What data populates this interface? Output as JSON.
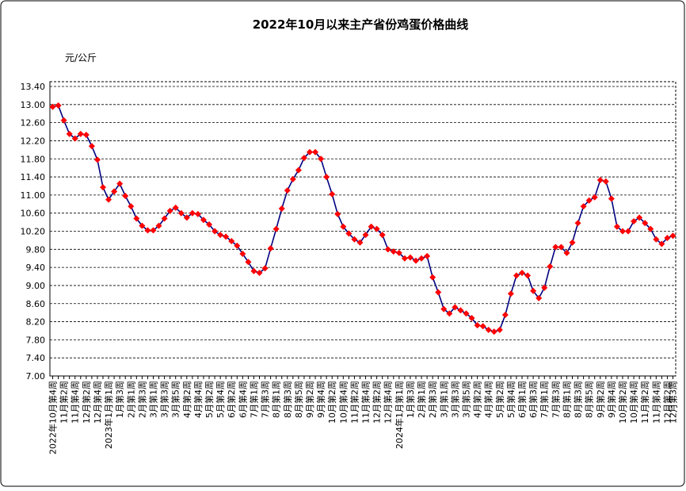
{
  "chart_data": {
    "type": "line",
    "title": "2022年10月以来主产省份鸡蛋价格曲线",
    "y_axis_label": "元/公斤",
    "categories": [
      "2022年10月第4周",
      null,
      "11月第2周",
      null,
      "11月第4周",
      null,
      "12月第2周",
      null,
      "12月第4周",
      null,
      "2023年1月第1周",
      null,
      "1月第3周",
      null,
      "2月第1周",
      null,
      "2月第3周",
      null,
      "3月第1周",
      null,
      "3月第3周",
      null,
      "3月第5周",
      null,
      "4月第2周",
      null,
      "4月第4周",
      null,
      "5月第2周",
      null,
      "5月第4周",
      null,
      "6月第2周",
      null,
      "6月第4周",
      null,
      "7月第1周",
      null,
      "7月第3周",
      null,
      "8月第1周",
      null,
      "8月第3周",
      null,
      "8月第5周",
      null,
      "9月第2周",
      null,
      "9月第4周",
      null,
      "10月第2周",
      null,
      "10月第4周",
      null,
      "11月第2周",
      null,
      "11月第4周",
      null,
      "12月第2周",
      null,
      "12月第4周",
      null,
      "2024年1月第1周",
      null,
      "1月第3周",
      null,
      "2月第1周",
      null,
      "2月第3周",
      null,
      "3月第1周",
      null,
      "3月第3周",
      null,
      "3月第5周",
      null,
      "4月第2周",
      null,
      "4月第4周",
      null,
      "5月第2周",
      null,
      "5月第4周",
      null,
      "6月第1周",
      null,
      "6月第3周",
      null,
      "7月第1周",
      null,
      "7月第3周",
      null,
      "8月第1周",
      null,
      "8月第3周",
      null,
      "8月第5周",
      null,
      "9月第2周",
      null,
      "9月第4周",
      null,
      "10月第2周",
      null,
      "10月第4周",
      null,
      "11月第2周",
      null,
      "11月第4周",
      null,
      "12月第2周",
      "12月第3周"
    ],
    "series": [
      {
        "line_color": "#000080",
        "marker_color": "#ff0000",
        "values": [
          12.95,
          12.98,
          12.65,
          12.35,
          12.25,
          12.35,
          12.33,
          12.08,
          11.78,
          11.17,
          10.9,
          11.08,
          11.25,
          10.98,
          10.75,
          10.48,
          10.32,
          10.22,
          10.22,
          10.32,
          10.48,
          10.65,
          10.72,
          10.6,
          10.5,
          10.6,
          10.58,
          10.45,
          10.35,
          10.2,
          10.12,
          10.08,
          9.98,
          9.88,
          9.7,
          9.52,
          9.32,
          9.28,
          9.38,
          9.82,
          10.25,
          10.7,
          11.1,
          11.35,
          11.55,
          11.82,
          11.95,
          11.95,
          11.8,
          11.4,
          11.02,
          10.58,
          10.3,
          10.15,
          10.02,
          9.95,
          10.12,
          10.3,
          10.25,
          10.12,
          9.8,
          9.75,
          9.72,
          9.6,
          9.62,
          9.55,
          9.6,
          9.65,
          9.18,
          8.85,
          8.48,
          8.38,
          8.52,
          8.45,
          8.38,
          8.28,
          8.12,
          8.1,
          8.02,
          7.98,
          8.02,
          8.35,
          8.82,
          9.22,
          9.28,
          9.22,
          8.88,
          8.72,
          8.95,
          9.42,
          9.85,
          9.85,
          9.72,
          9.95,
          10.38,
          10.75,
          10.88,
          10.95,
          11.33,
          11.3,
          10.92,
          10.3,
          10.2,
          10.2,
          10.42,
          10.5,
          10.38,
          10.25,
          10.02,
          9.92,
          10.05,
          10.1
        ]
      }
    ],
    "ylim": [
      7.0,
      13.4
    ],
    "yticks": [
      {
        "value": 7.0,
        "label": "7.00"
      },
      {
        "value": 7.4,
        "label": "7.40"
      },
      {
        "value": 7.8,
        "label": "7.80"
      },
      {
        "value": 8.2,
        "label": "8.20"
      },
      {
        "value": 8.6,
        "label": "8.60"
      },
      {
        "value": 9.0,
        "label": "9.00"
      },
      {
        "value": 9.4,
        "label": "9.40"
      },
      {
        "value": 9.8,
        "label": "9.80"
      },
      {
        "value": 10.2,
        "label": "10.20"
      },
      {
        "value": 10.6,
        "label": "10.60"
      },
      {
        "value": 11.0,
        "label": "11.00"
      },
      {
        "value": 11.4,
        "label": "11.40"
      },
      {
        "value": 11.8,
        "label": "11.80"
      },
      {
        "value": 12.2,
        "label": "12.20"
      },
      {
        "value": 12.6,
        "label": "12.60"
      },
      {
        "value": 13.0,
        "label": "13.00"
      },
      {
        "value": 13.4,
        "label": "13.40"
      }
    ],
    "grid": true
  }
}
